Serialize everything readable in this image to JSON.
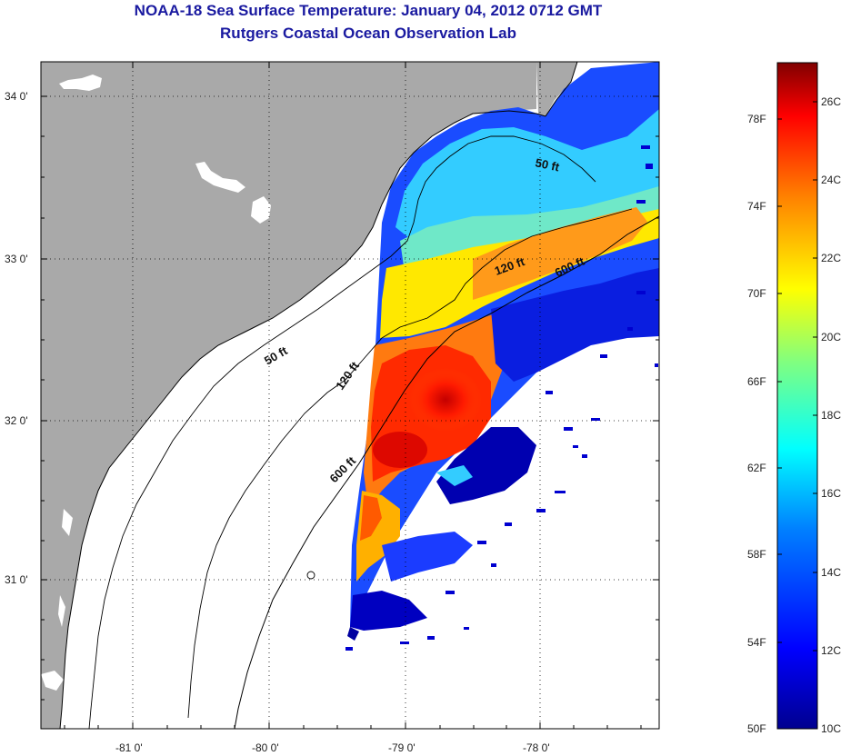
{
  "header": {
    "title": "NOAA-18 Sea Surface Temperature:  January 04, 2012 0712 GMT",
    "subtitle": "Rutgers Coastal Ocean Observation Lab"
  },
  "map": {
    "lat_labels": [
      "34 0'",
      "33 0'",
      "32 0'",
      "31 0'"
    ],
    "lon_labels": [
      "-81 0'",
      "-80 0'",
      "-79 0'",
      "-78 0'"
    ],
    "lon_range": [
      -81.7,
      -77.2
    ],
    "lat_range": [
      30.2,
      34.2
    ],
    "isobath_labels": {
      "upper_50": "50 ft",
      "upper_120": "120 ft",
      "upper_600": "600 ft",
      "lower_50": "50 ft",
      "lower_120": "120 ft",
      "lower_600": "600 ft"
    },
    "colors": {
      "land": "#a9a9a9",
      "ocean_nodata": "#ffffff",
      "grid": "#000000"
    }
  },
  "colorbar": {
    "fahrenheit_labels": [
      "78F",
      "74F",
      "70F",
      "66F",
      "62F",
      "58F",
      "54F",
      "50F"
    ],
    "celsius_labels": [
      "26C",
      "24C",
      "22C",
      "20C",
      "18C",
      "16C",
      "14C",
      "12C",
      "10C"
    ],
    "range_c": [
      10,
      27
    ],
    "colormap": [
      "#00008f",
      "#0000ff",
      "#0080ff",
      "#00ffff",
      "#80ff80",
      "#ffff00",
      "#ff8000",
      "#ff0000",
      "#800000"
    ]
  }
}
